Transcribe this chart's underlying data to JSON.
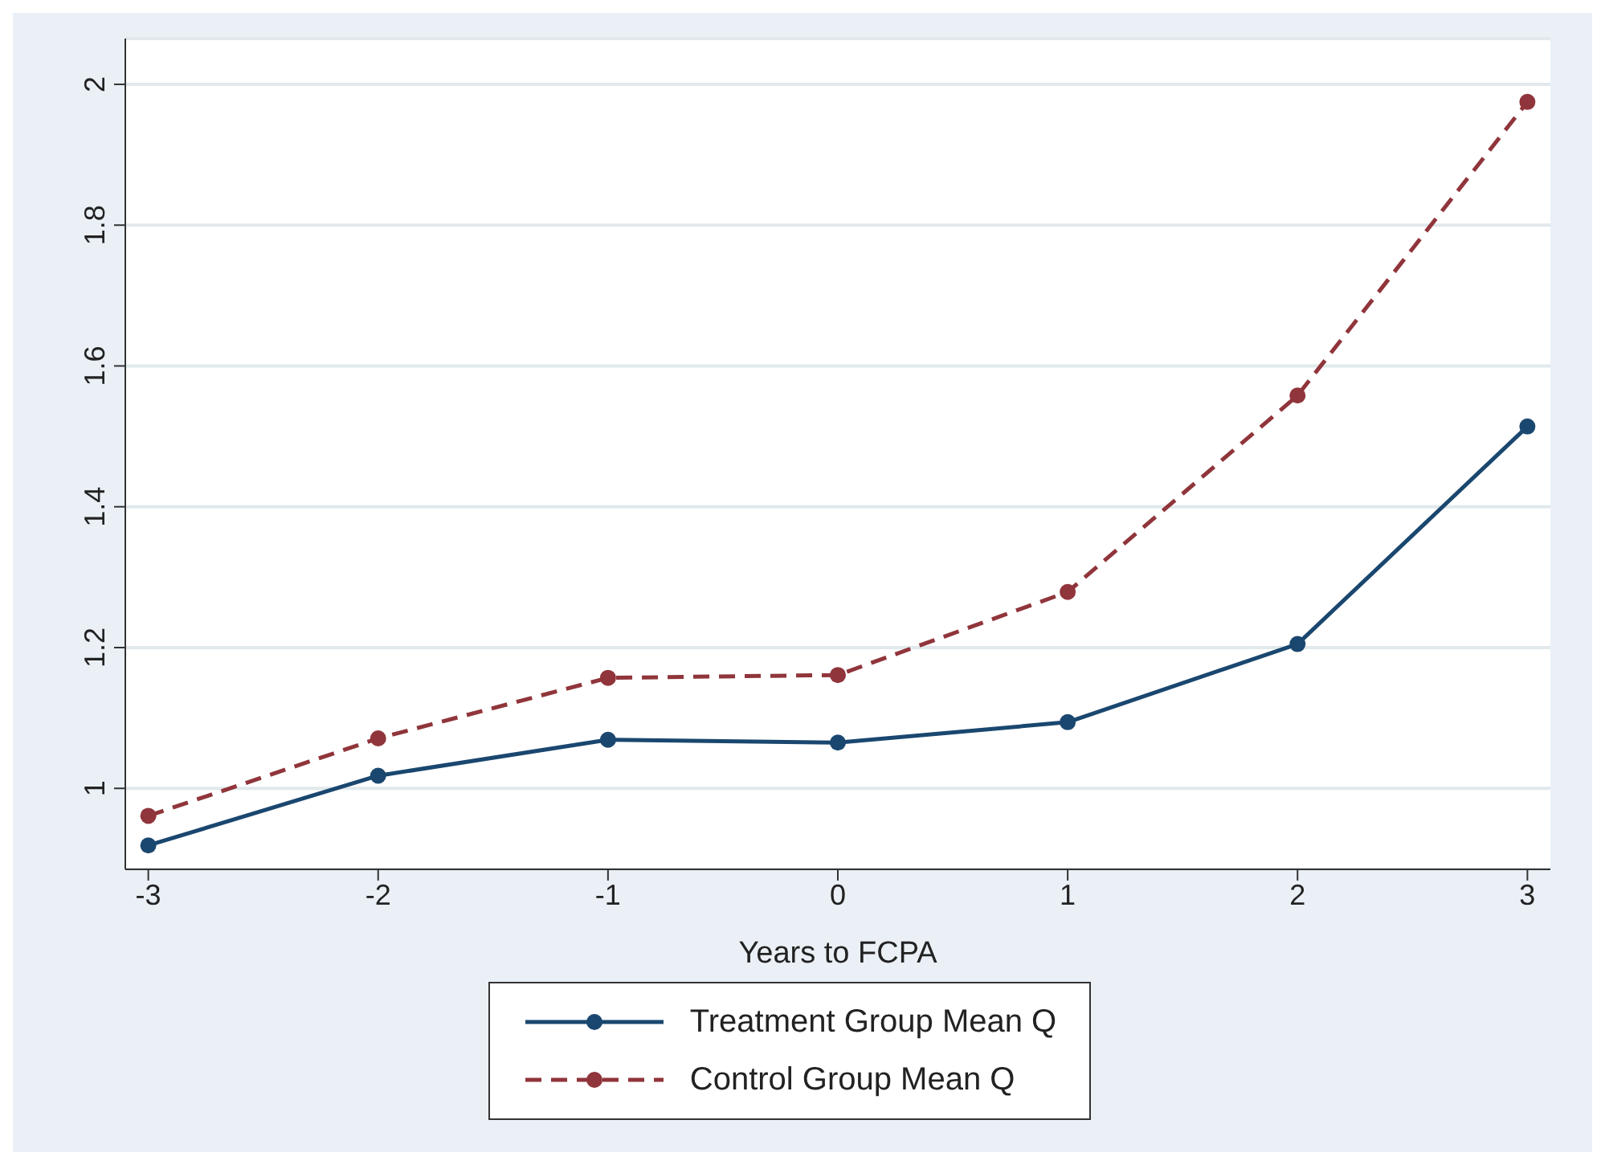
{
  "chart_data": {
    "type": "line",
    "xlabel": "Years to FCPA",
    "x": [
      -3,
      -2,
      -1,
      0,
      1,
      2,
      3
    ],
    "xlim": [
      -3.1,
      3.1
    ],
    "xticks": [
      -3,
      -2,
      -1,
      0,
      1,
      2,
      3
    ],
    "ylim": [
      0.885,
      2.065
    ],
    "yticks": [
      1,
      1.2,
      1.4,
      1.6,
      1.8,
      2
    ],
    "grid": "y",
    "legend": "bottom",
    "marker": "circle",
    "series": [
      {
        "name": "Treatment Group Mean Q",
        "color": "#1a476f",
        "line_style": "solid",
        "values": [
          0.919,
          1.018,
          1.069,
          1.065,
          1.094,
          1.205,
          1.514
        ]
      },
      {
        "name": "Control Group Mean Q",
        "color": "#90353b",
        "line_style": "dashed",
        "values": [
          0.961,
          1.071,
          1.157,
          1.161,
          1.279,
          1.558,
          1.975
        ]
      }
    ]
  }
}
